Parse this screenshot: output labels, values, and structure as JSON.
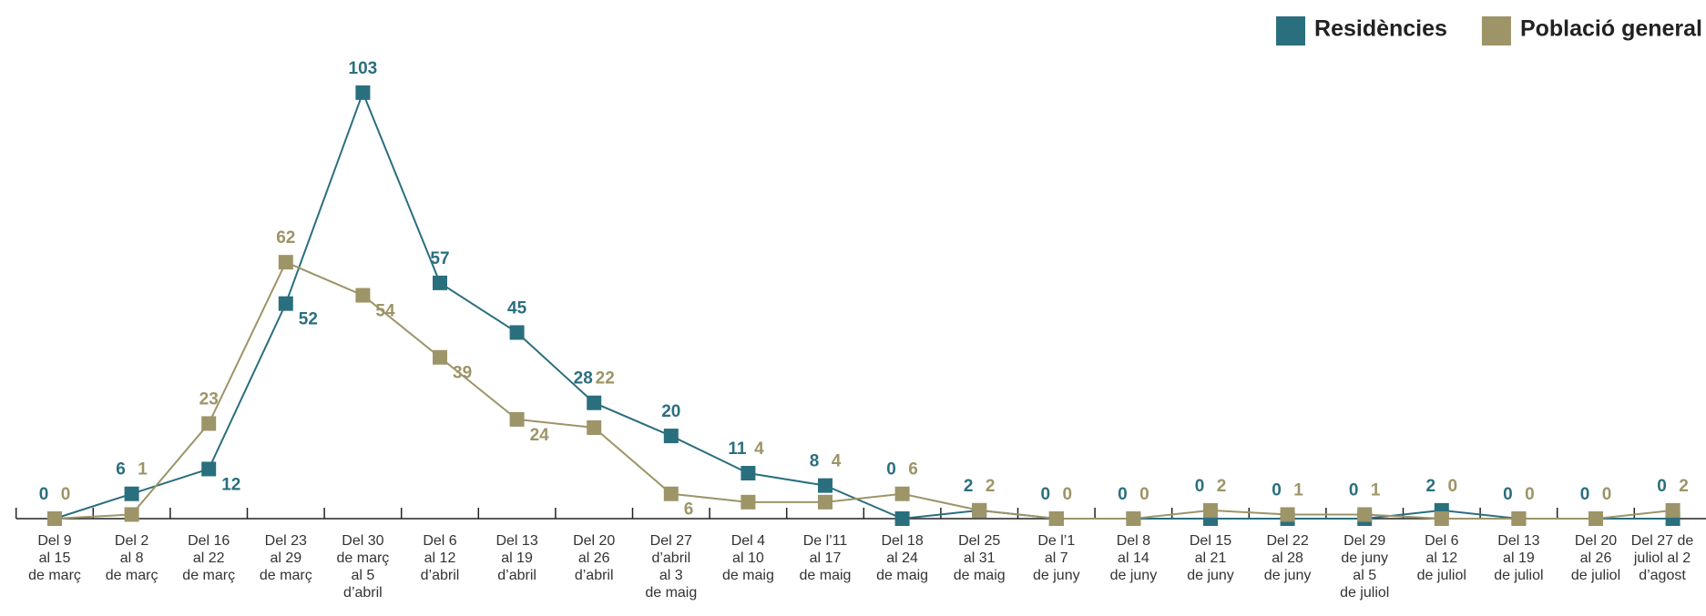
{
  "chart_data": {
    "type": "line",
    "categories": [
      [
        "Del 9",
        "al 15",
        "de març"
      ],
      [
        "Del 2",
        "al 8",
        "de març"
      ],
      [
        "Del 16",
        "al 22",
        "de març"
      ],
      [
        "Del 23",
        "al 29",
        "de març"
      ],
      [
        "Del 30",
        "de març",
        "al 5",
        "d’abril"
      ],
      [
        "Del 6",
        "al 12",
        "d’abril"
      ],
      [
        "Del 13",
        "al 19",
        "d’abril"
      ],
      [
        "Del 20",
        "al 26",
        "d’abril"
      ],
      [
        "Del 27",
        "d’abril",
        "al 3",
        "de maig"
      ],
      [
        "Del 4",
        "al 10",
        "de maig"
      ],
      [
        "De l’11",
        "al 17",
        "de maig"
      ],
      [
        "Del 18",
        "al 24",
        "de maig"
      ],
      [
        "Del 25",
        "al 31",
        "de maig"
      ],
      [
        "De l’1",
        "al 7",
        "de juny"
      ],
      [
        "Del 8",
        "al 14",
        "de juny"
      ],
      [
        "Del 15",
        "al 21",
        "de juny"
      ],
      [
        "Del 22",
        "al 28",
        "de juny"
      ],
      [
        "Del 29",
        "de juny",
        "al 5",
        "de juliol"
      ],
      [
        "Del 6",
        "al 12",
        "de juliol"
      ],
      [
        "Del 13",
        "al 19",
        "de juliol"
      ],
      [
        "Del 20",
        "al 26",
        "de juliol"
      ],
      [
        "Del 27 de",
        "juliol al 2",
        "d’agost"
      ]
    ],
    "series": [
      {
        "name": "Residències",
        "color": "#2a6f7e",
        "values": [
          0,
          6,
          12,
          52,
          103,
          57,
          45,
          28,
          20,
          11,
          8,
          0,
          2,
          0,
          0,
          0,
          0,
          0,
          2,
          0,
          0,
          0
        ]
      },
      {
        "name": "Població general",
        "color": "#9d9468",
        "values": [
          0,
          1,
          23,
          62,
          54,
          39,
          24,
          22,
          6,
          4,
          4,
          6,
          2,
          0,
          0,
          2,
          1,
          1,
          0,
          0,
          0,
          2
        ]
      }
    ],
    "ylim": [
      0,
      110
    ],
    "legend": "top-right"
  }
}
